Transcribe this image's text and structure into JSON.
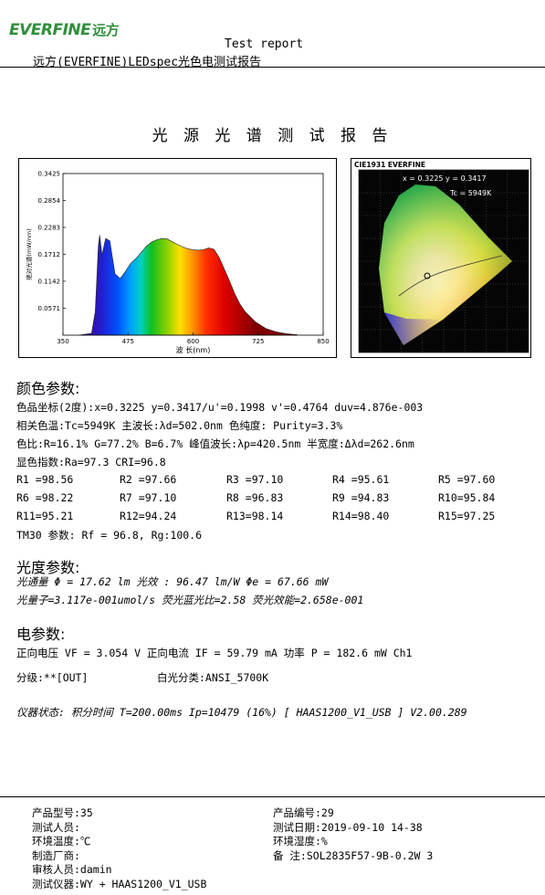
{
  "header": {
    "logo_text": "EVERFINE",
    "logo_cn": "远方",
    "report_en": "Test report",
    "report_cn": "远方(EVERFINE)LEDspec光色电测试报告"
  },
  "page_title": "光 源 光 谱 测 试 报 告",
  "colors": {
    "logo_green": "#2f8f3a"
  },
  "spectrum_chart": {
    "chart_data": {
      "type": "area",
      "title": "",
      "xlabel": "波 长(nm)",
      "ylabel": "绝对光谱(mW/nm)",
      "x_ticks": [
        "350",
        "475",
        "600",
        "725",
        "850"
      ],
      "y_ticks": [
        "0.3425",
        "0.2854",
        "0.2283",
        "0.1712",
        "0.1142",
        "0.0571"
      ],
      "xlim": [
        350,
        850
      ],
      "ylim": [
        0,
        0.3425
      ],
      "x": [
        380,
        405,
        412,
        418,
        420.5,
        425,
        432,
        440,
        450,
        460,
        470,
        480,
        490,
        500,
        510,
        520,
        530,
        540,
        550,
        560,
        570,
        580,
        590,
        600,
        610,
        620,
        630,
        640,
        650,
        660,
        670,
        680,
        690,
        700,
        720,
        740,
        760,
        780,
        800
      ],
      "values": [
        0,
        0.004,
        0.05,
        0.19,
        0.212,
        0.17,
        0.205,
        0.2,
        0.13,
        0.12,
        0.135,
        0.152,
        0.162,
        0.175,
        0.188,
        0.197,
        0.202,
        0.205,
        0.204,
        0.198,
        0.192,
        0.187,
        0.183,
        0.181,
        0.18,
        0.181,
        0.185,
        0.182,
        0.165,
        0.14,
        0.115,
        0.088,
        0.066,
        0.05,
        0.028,
        0.014,
        0.007,
        0.003,
        0.001
      ]
    }
  },
  "cie_chart": {
    "title": "CIE1931 EVERFINE",
    "coords": "x = 0.3225  y = 0.3417",
    "tc": "Tc = 5949K"
  },
  "color_params": {
    "heading": "颜色参数:",
    "line1": "色品坐标(2度):x=0.3225  y=0.3417/u'=0.1998  v'=0.4764   duv=4.876e-003",
    "line2": "相关色温:Tc=5949K  主波长:λd=502.0nm  色纯度: Purity=3.3%",
    "line3": "色比:R=16.1% G=77.2% B=6.7%  峰值波长:λp=420.5nm  半宽度:Δλd=262.6nm",
    "line4": "显色指数:Ra=97.3  CRI=96.8",
    "r_rows": [
      [
        "R1 =98.56",
        "R2 =97.66",
        "R3 =97.10",
        "R4 =95.61",
        "R5 =97.60"
      ],
      [
        "R6 =98.22",
        "R7 =97.10",
        "R8 =96.83",
        "R9 =94.83",
        "R10=95.84"
      ],
      [
        "R11=95.21",
        "R12=94.24",
        "R13=98.14",
        "R14=98.40",
        "R15=97.25"
      ]
    ],
    "tm30": "TM30 参数: Rf = 96.8, Rg:100.6"
  },
  "photometric": {
    "heading": "光度参数:",
    "line1": "光通量   Φ  = 17.62 lm   光效 : 96.47 lm/W  Φe  =  67.66 mW",
    "line2": "光量子=3.117e-001umol/s 荧光蓝光比=2.58 荧光效能=2.658e-001"
  },
  "electrical": {
    "heading": "电参数:",
    "line1": "正向电压 VF = 3.054 V     正向电流 IF = 59.79 mA    功率 P = 182.6 mW  Ch1",
    "grade": "分级:**[OUT]",
    "white_class": "白光分类:ANSI_5700K"
  },
  "instrument_status": "仪器状态:  积分时间 T=200.00ms  Ip=10479 (16%)  [ HAAS1200_V1_USB ] V2.00.289",
  "footer": {
    "left": [
      "产品型号:35",
      "测试人员:",
      "环境温度:℃",
      "制造厂商:",
      "审核人员:damin",
      "测试仪器:WY + HAAS1200_V1_USB"
    ],
    "right": [
      "产品编号:29",
      "测试日期:2019-09-10 14-38",
      "环境湿度:%",
      "备    注:SOL2835F57-9B-0.2W 3"
    ]
  }
}
